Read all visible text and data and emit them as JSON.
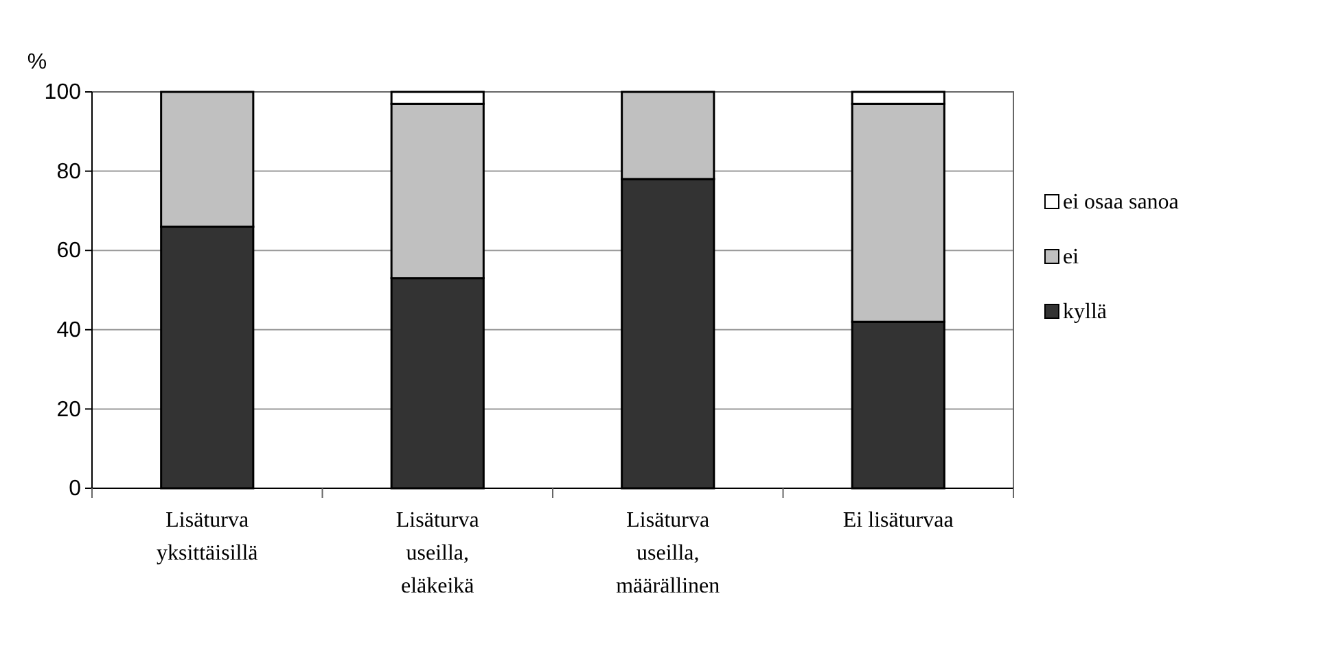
{
  "chart_data": {
    "type": "bar",
    "ylabel": "%",
    "categories": [
      "Lisäturva yksittäisillä",
      "Lisäturva useilla, eläkeikä",
      "Lisäturva useilla, määrällinen",
      "Ei lisäturvaa"
    ],
    "series": [
      {
        "name": "kyllä",
        "color": "#333333",
        "values": [
          66,
          53,
          78,
          42
        ]
      },
      {
        "name": "ei",
        "color": "#c0c0c0",
        "values": [
          34,
          44,
          22,
          55
        ]
      },
      {
        "name": "ei osaa sanoa",
        "color": "#ffffff",
        "values": [
          0,
          3,
          0,
          3
        ]
      }
    ],
    "stacked": true,
    "ylim": [
      0,
      100
    ],
    "yticks": [
      0,
      20,
      40,
      60,
      80,
      100
    ],
    "grid": "y",
    "legend": "right"
  }
}
